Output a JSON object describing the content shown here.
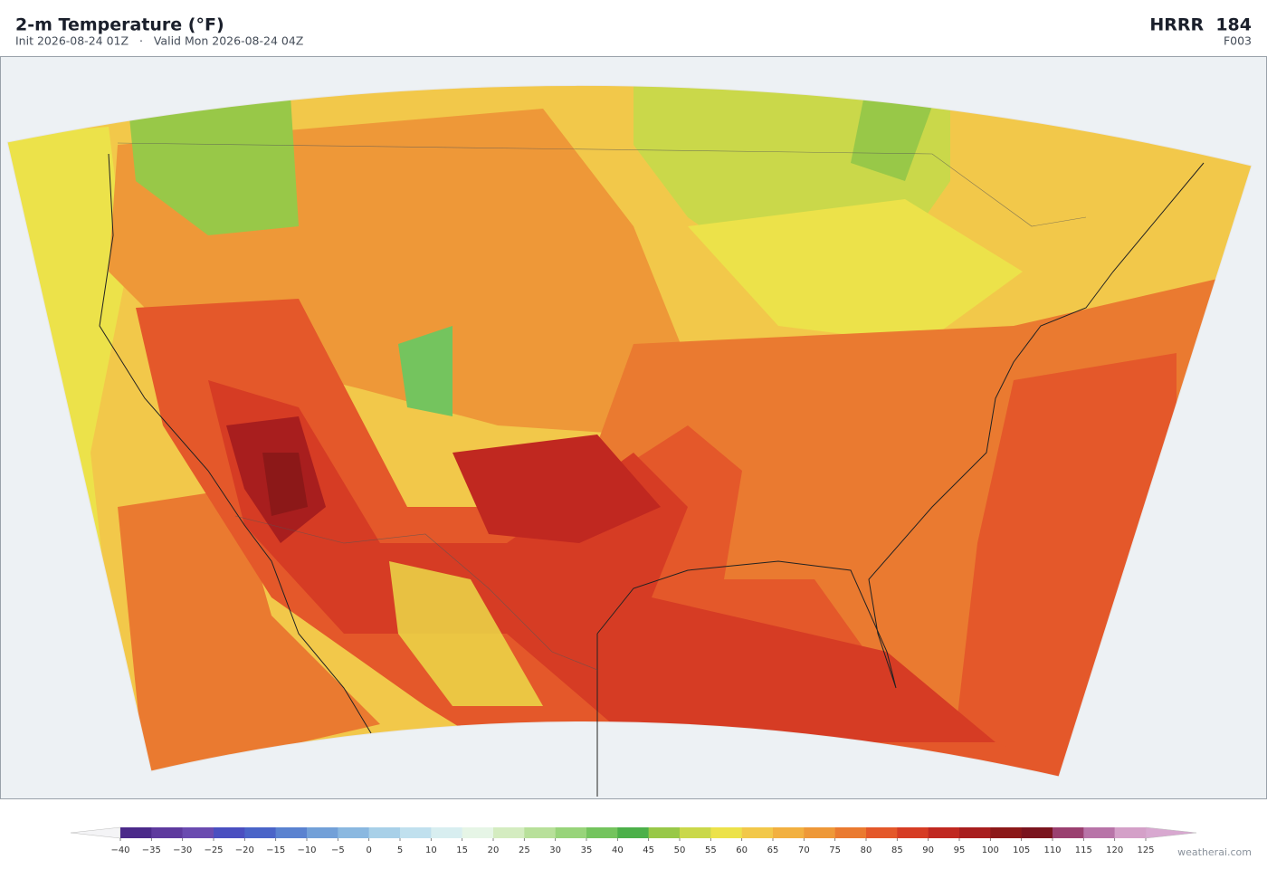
{
  "header": {
    "title": "2-m Temperature  (°F)",
    "subtitle": "Init 2026-08-24 01Z   ·   Valid Mon 2026-08-24 04Z",
    "model": "HRRR  184",
    "forecast_hour": "F003"
  },
  "colorbar": {
    "ticks": [
      {
        "value": -40,
        "label": "−40"
      },
      {
        "value": -35,
        "label": "−35"
      },
      {
        "value": -30,
        "label": "−30"
      },
      {
        "value": -25,
        "label": "−25"
      },
      {
        "value": -20,
        "label": "−20"
      },
      {
        "value": -15,
        "label": "−15"
      },
      {
        "value": -10,
        "label": "−10"
      },
      {
        "value": -5,
        "label": "−5"
      },
      0,
      5,
      10,
      15,
      20,
      25,
      30,
      35,
      40,
      45,
      50,
      55,
      60,
      65,
      70,
      75,
      80,
      85,
      90,
      95,
      100,
      105,
      110,
      115,
      120,
      125
    ],
    "colors": [
      "#4b2a8a",
      "#5e3a9e",
      "#6a4bb0",
      "#4a4fc0",
      "#4a64c8",
      "#5a82d0",
      "#72a0d8",
      "#8ab8e0",
      "#a8d0e8",
      "#c0e0ee",
      "#d8eef0",
      "#e6f5e6",
      "#d4ecc0",
      "#b8e09a",
      "#98d47a",
      "#74c45e",
      "#4cb04a",
      "#98c848",
      "#cad84a",
      "#ece24a",
      "#f2c84a",
      "#f2b040",
      "#ee9838",
      "#ea7a30",
      "#e4582a",
      "#d63c24",
      "#c02820",
      "#a81e1e",
      "#8c1818",
      "#7a141e",
      "#9a4070",
      "#b874a8",
      "#d4a0c8"
    ],
    "under_color": "#f4f4f6",
    "over_color": "#d8a8d0"
  },
  "footer": {
    "credit": "weatherai.com"
  }
}
